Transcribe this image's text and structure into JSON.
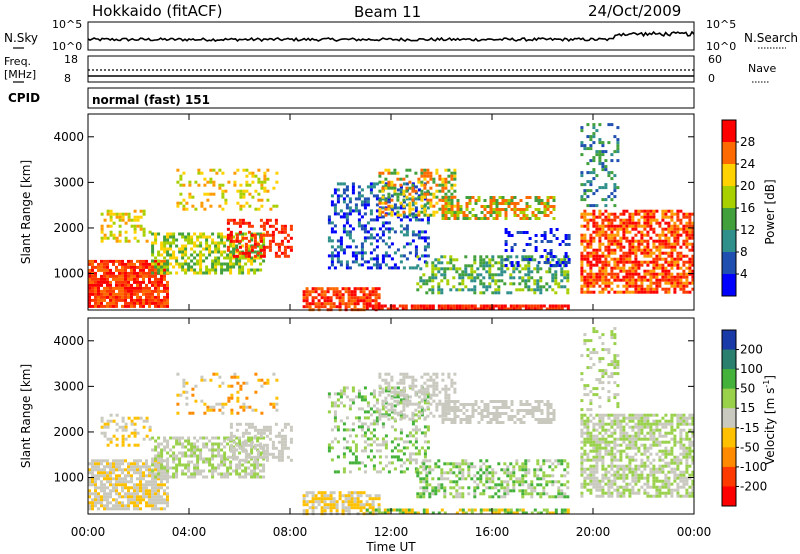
{
  "header": {
    "title_left": "Hokkaido (fitACF)",
    "title_center": "Beam 11",
    "title_right": "24/Oct/2009"
  },
  "noise_panel": {
    "left_label": "N.Sky",
    "right_label": "N.Search",
    "left_ticks": [
      "10^5",
      "10^0"
    ],
    "right_ticks": [
      "10^5",
      "10^0"
    ]
  },
  "freq_panel": {
    "left_label_1": "Freq.",
    "left_label_2": "[MHz]",
    "right_label": "Nave",
    "left_ticks": [
      "18",
      "8"
    ],
    "right_ticks": [
      "60",
      "0"
    ]
  },
  "cpid_panel": {
    "label": "CPID",
    "text": "normal (fast) 151"
  },
  "chart_data": [
    {
      "type": "heatmap",
      "name": "power",
      "ylabel": "Slant Range [km]",
      "y_ticks": [
        "4000",
        "3000",
        "2000",
        "1000"
      ],
      "ylim": [
        200,
        4500
      ],
      "colorbar_label": "Power [dB]",
      "colorbar_ticks": [
        "28",
        "24",
        "20",
        "16",
        "12",
        "8",
        "4"
      ],
      "colorbar_colors": [
        "#ff0000",
        "#ff6a00",
        "#ffd200",
        "#a8d000",
        "#41a03c",
        "#2f8f8a",
        "#1f4fb0",
        "#0000ff"
      ]
    },
    {
      "type": "heatmap",
      "name": "velocity",
      "ylabel": "Slant Range [km]",
      "y_ticks": [
        "4000",
        "3000",
        "2000",
        "1000"
      ],
      "ylim": [
        200,
        4500
      ],
      "colorbar_label_main": "Velocity [m s",
      "colorbar_label_sup": "-1",
      "colorbar_label_end": "]",
      "colorbar_ticks": [
        "200",
        "100",
        "50",
        "15",
        "-15",
        "-50",
        "-100",
        "-200"
      ],
      "colorbar_colors": [
        "#1a3aa8",
        "#2a7f6f",
        "#44b23a",
        "#99d14a",
        "#c9c9bf",
        "#ffc000",
        "#ff8a00",
        "#ff3a00",
        "#ff0000"
      ]
    }
  ],
  "x_axis": {
    "label": "Time UT",
    "ticks": [
      "00:00",
      "04:00",
      "08:00",
      "12:00",
      "16:00",
      "20:00",
      "00:00"
    ]
  }
}
